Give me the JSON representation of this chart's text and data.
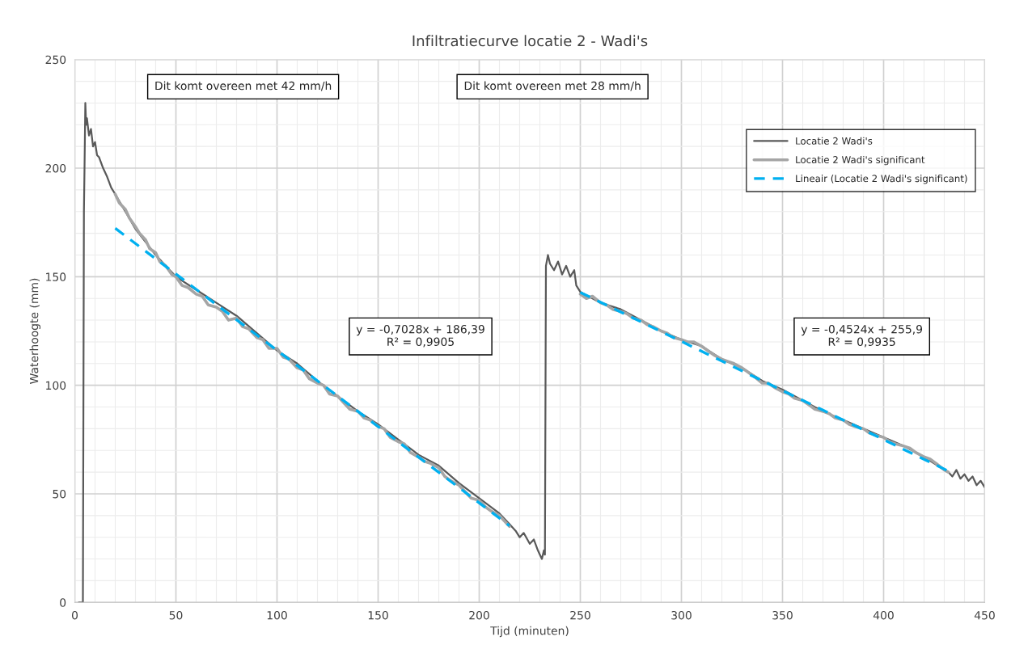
{
  "chart_data": {
    "type": "line",
    "title": "Infiltratiecurve locatie 2 - Wadi's",
    "xlabel": "Tijd (minuten)",
    "ylabel": "Waterhoogte (mm)",
    "xlim": [
      0,
      450
    ],
    "xticks": [
      0,
      50,
      100,
      150,
      200,
      250,
      300,
      350,
      400,
      450
    ],
    "ylim": [
      0,
      250
    ],
    "yticks": [
      0,
      50,
      100,
      150,
      200,
      250
    ],
    "grid": true,
    "legend": "top right",
    "marker": "none",
    "series": [
      {
        "name": "Locatie 2 Wadi's",
        "color": "#595959",
        "line_style": "solid",
        "x": [
          2,
          4,
          4.5,
          4.8,
          5.2,
          5.6,
          6,
          7,
          8,
          9,
          10,
          11,
          12,
          14,
          16,
          18,
          20,
          25,
          30,
          35,
          40,
          45,
          50,
          60,
          70,
          80,
          90,
          100,
          110,
          120,
          130,
          140,
          150,
          160,
          170,
          180,
          190,
          200,
          210,
          215,
          218,
          220,
          222,
          225,
          227,
          229,
          230,
          231,
          232,
          232.5,
          233,
          234,
          235,
          237,
          239,
          241,
          243,
          245,
          247,
          248,
          250,
          260,
          270,
          280,
          290,
          300,
          310,
          320,
          330,
          340,
          350,
          360,
          370,
          380,
          390,
          400,
          410,
          420,
          430,
          432,
          434,
          436,
          438,
          440,
          442,
          444,
          446,
          448,
          450
        ],
        "values": [
          0,
          0,
          180,
          200,
          230,
          220,
          223,
          215,
          218,
          210,
          212,
          206,
          205,
          200,
          196,
          191,
          188,
          180,
          172,
          166,
          160,
          155,
          150,
          144,
          138,
          132,
          124,
          116,
          110,
          102,
          95,
          88,
          82,
          75,
          68,
          63,
          55,
          48,
          41,
          36,
          33,
          30,
          32,
          27,
          29,
          24,
          22,
          20,
          24,
          22,
          155,
          160,
          156,
          153,
          157,
          151,
          155,
          150,
          153,
          146,
          143,
          138,
          135,
          130,
          125,
          121,
          118,
          112,
          108,
          102,
          98,
          93,
          88,
          84,
          80,
          76,
          72,
          67,
          61,
          60,
          58,
          61,
          57,
          59,
          56,
          58,
          54,
          56,
          53
        ]
      },
      {
        "name": "Locatie 2 Wadi's significant",
        "color": "#a5a5a5",
        "line_style": "solid",
        "x": [
          20,
          22,
          25,
          27,
          30,
          32,
          35,
          37,
          40,
          42,
          45,
          48,
          50,
          53,
          56,
          60,
          63,
          66,
          70,
          73,
          76,
          80,
          83,
          86,
          90,
          93,
          96,
          100,
          103,
          106,
          110,
          113,
          116,
          120,
          123,
          126,
          130,
          133,
          136,
          140,
          143,
          146,
          150,
          153,
          156,
          160,
          163,
          166,
          170,
          173,
          176,
          180,
          183,
          186,
          190,
          193,
          196,
          200,
          203,
          206,
          210,
          213,
          215,
          232,
          250,
          253,
          256,
          260,
          263,
          266,
          270,
          273,
          276,
          280,
          283,
          286,
          290,
          293,
          296,
          300,
          303,
          306,
          310,
          313,
          316,
          320,
          323,
          326,
          330,
          333,
          336,
          340,
          343,
          346,
          350,
          353,
          356,
          360,
          363,
          366,
          370,
          373,
          376,
          380,
          383,
          386,
          390,
          393,
          396,
          400,
          403,
          406,
          410,
          413,
          416,
          420,
          423,
          426,
          430,
          432
        ],
        "values": [
          188,
          184,
          181,
          177,
          173,
          170,
          167,
          163,
          161,
          157,
          155,
          151,
          150,
          146,
          145,
          142,
          141,
          137,
          136,
          134,
          130,
          131,
          127,
          126,
          122,
          121,
          117,
          117,
          113,
          112,
          108,
          107,
          103,
          101,
          100,
          96,
          95,
          92,
          89,
          88,
          85,
          84,
          81,
          80,
          76,
          74,
          73,
          69,
          67,
          65,
          64,
          62,
          58,
          56,
          54,
          51,
          48,
          47,
          44,
          42,
          40,
          37,
          35,
          null,
          142,
          140,
          141,
          138,
          137,
          135,
          134,
          133,
          131,
          130,
          128,
          127,
          125,
          124,
          122,
          121,
          120,
          120,
          118,
          116,
          114,
          112,
          111,
          110,
          108,
          106,
          104,
          101,
          101,
          99,
          97,
          96,
          94,
          93,
          91,
          89,
          88,
          87,
          85,
          84,
          82,
          81,
          80,
          78,
          77,
          76,
          74,
          73,
          72,
          71,
          69,
          67,
          66,
          64,
          61,
          60
        ]
      },
      {
        "name": "Lineair (Locatie 2 Wadi's significant)",
        "color": "#00b0f0",
        "line_style": "dashed",
        "x": [
          20,
          215,
          232,
          250,
          432
        ],
        "values": [
          172.3,
          35.3,
          null,
          142.8,
          60.5
        ]
      }
    ],
    "annotations": [
      "Dit komt overeen met 42 mm/h",
      "Dit komt overeen met 28 mm/h",
      "y = -0,7028x + 186,39\nR² = 0,9905",
      "y = -0,4524x + 255,9\nR² = 0,9935"
    ]
  }
}
